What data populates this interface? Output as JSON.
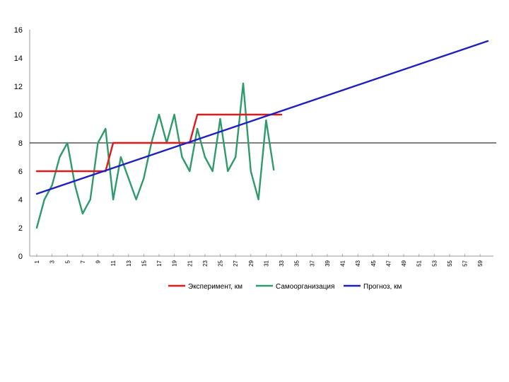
{
  "chart_data": {
    "type": "line",
    "title": "",
    "xlabel": "",
    "ylabel": "",
    "ylim": [
      0,
      16
    ],
    "yticks": [
      0,
      2,
      4,
      6,
      8,
      10,
      12,
      14,
      16
    ],
    "xlim": [
      1,
      60
    ],
    "xticks": [
      1,
      3,
      5,
      7,
      9,
      11,
      13,
      15,
      17,
      19,
      21,
      23,
      25,
      27,
      29,
      31,
      33,
      35,
      37,
      39,
      41,
      43,
      45,
      47,
      49,
      51,
      53,
      55,
      57,
      59
    ],
    "reference_line": 8,
    "legend_position": "bottom",
    "series": [
      {
        "name": "Эксперимент, км",
        "color": "#e31a1c",
        "x": [
          1,
          10,
          11,
          21,
          22,
          33
        ],
        "y": [
          6,
          6,
          8,
          8,
          10,
          10
        ]
      },
      {
        "name": "Самоорганизация",
        "color": "#2e9b6a",
        "x": [
          1,
          2,
          3,
          4,
          5,
          6,
          7,
          8,
          9,
          10,
          11,
          12,
          13,
          14,
          15,
          16,
          17,
          18,
          19,
          20,
          21,
          22,
          23,
          24,
          25,
          26,
          27,
          28,
          29,
          30,
          31,
          32
        ],
        "y": [
          2,
          4,
          5,
          7,
          8,
          5,
          3,
          4,
          8,
          9,
          4,
          7,
          5.5,
          4,
          5.5,
          8,
          10,
          8,
          10,
          7,
          6,
          9,
          7,
          6,
          9.7,
          6,
          7,
          12.2,
          6,
          4,
          9.6,
          6.1
        ]
      },
      {
        "name": "Прогноз, км",
        "color": "#1f1fbf",
        "x": [
          1,
          60
        ],
        "y": [
          4.4,
          15.2
        ]
      }
    ]
  }
}
